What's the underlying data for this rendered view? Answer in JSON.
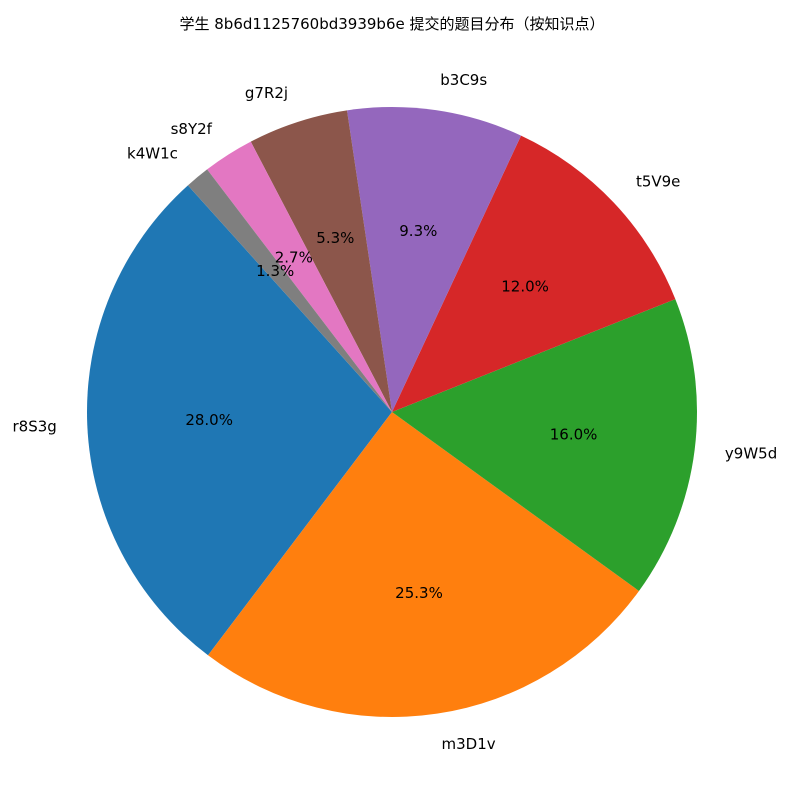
{
  "chart_data": {
    "type": "pie",
    "title": "学生 8b6d1125760bd3939b6e 提交的题目分布（按知识点）",
    "categories": [
      "r8S3g",
      "m3D1v",
      "y9W5d",
      "t5V9e",
      "b3C9s",
      "g7R2j",
      "s8Y2f",
      "k4W1c"
    ],
    "values": [
      28.0,
      25.3,
      16.0,
      12.0,
      9.3,
      5.3,
      2.7,
      1.3
    ],
    "value_labels": [
      "28.0%",
      "25.3%",
      "16.0%",
      "12.0%",
      "9.3%",
      "5.3%",
      "2.7%",
      "1.3%"
    ],
    "colors": [
      "#1f77b4",
      "#ff7f0e",
      "#2ca02c",
      "#d62728",
      "#9467bd",
      "#8c564b",
      "#e377c2",
      "#7f7f7f"
    ],
    "start_angle_deg": 132,
    "direction": "counterclockwise",
    "legend": "none"
  }
}
